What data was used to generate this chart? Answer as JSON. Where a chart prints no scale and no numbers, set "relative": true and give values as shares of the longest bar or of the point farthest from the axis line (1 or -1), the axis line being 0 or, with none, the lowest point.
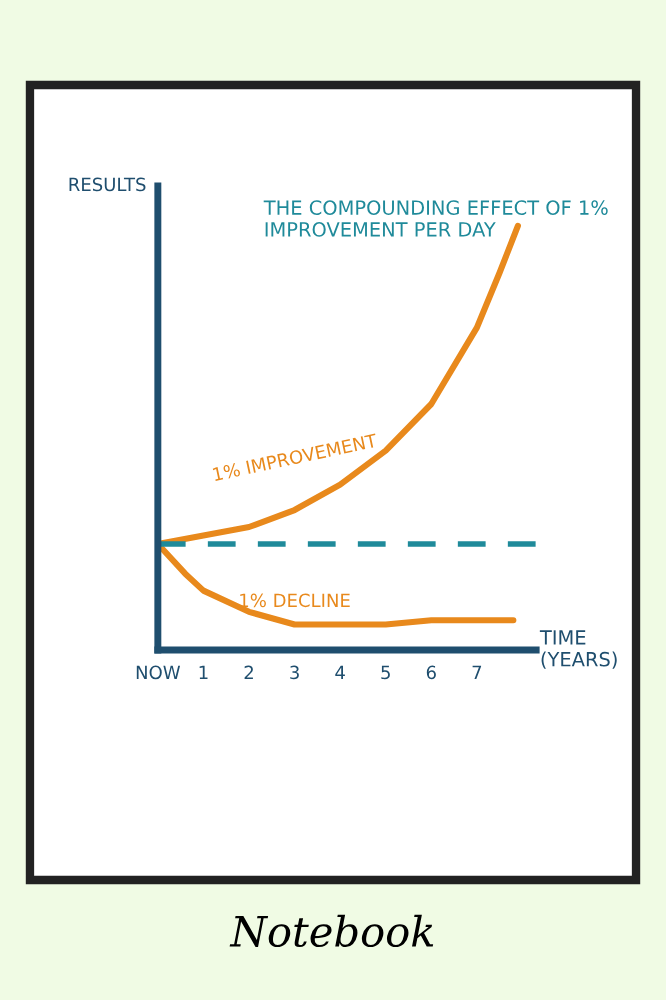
{
  "chart_data": {
    "type": "line",
    "title": "THE COMPOUNDING EFFECT OF 1% IMPROVEMENT PER DAY",
    "xlabel": "TIME (YEARS)",
    "ylabel": "RESULTS",
    "relative": true,
    "xlim": [
      0,
      8.3
    ],
    "xticks": [
      {
        "value": 0,
        "label": "NOW"
      },
      1,
      2,
      3,
      4,
      5,
      6,
      7
    ],
    "series": [
      {
        "name": "1% IMPROVEMENT",
        "color": "#e8891c",
        "x": [
          0,
          1,
          2,
          3,
          4,
          5,
          6,
          7,
          7.5,
          7.9
        ],
        "values": [
          0.25,
          0.27,
          0.29,
          0.33,
          0.39,
          0.47,
          0.58,
          0.76,
          0.89,
          1.0
        ]
      },
      {
        "name": "1% DECLINE",
        "color": "#e8891c",
        "x": [
          0,
          0.6,
          1,
          2,
          3,
          4,
          5,
          6,
          7,
          7.8
        ],
        "values": [
          0.25,
          0.18,
          0.14,
          0.09,
          0.06,
          0.06,
          0.06,
          0.07,
          0.07,
          0.07
        ]
      }
    ],
    "ref_lines": [
      {
        "axis": "y",
        "value": 0.25,
        "color": "#1f8a9a",
        "line_style": "dashed"
      }
    ],
    "grid": false,
    "annotations": [
      "Notebook"
    ]
  }
}
